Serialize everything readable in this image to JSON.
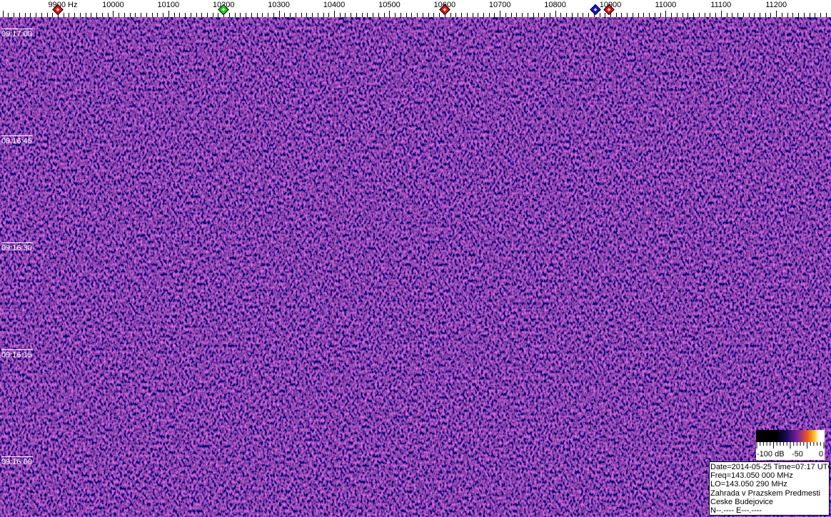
{
  "frequency_scale": {
    "labels": [
      {
        "text": "9900 Hz",
        "hz": 9900
      },
      {
        "text": "10000",
        "hz": 10000
      },
      {
        "text": "10100",
        "hz": 10100
      },
      {
        "text": "10200",
        "hz": 10200
      },
      {
        "text": "10300",
        "hz": 10300
      },
      {
        "text": "10400",
        "hz": 10400
      },
      {
        "text": "10500",
        "hz": 10500
      },
      {
        "text": "10600",
        "hz": 10600
      },
      {
        "text": "10700",
        "hz": 10700
      },
      {
        "text": "10800",
        "hz": 10800
      },
      {
        "text": "10900",
        "hz": 10900
      },
      {
        "text": "11000",
        "hz": 11000
      },
      {
        "text": "11100",
        "hz": 11100
      },
      {
        "text": "11200",
        "hz": 11200
      }
    ],
    "markers": [
      {
        "hz": 9900,
        "color": "#d81818"
      },
      {
        "hz": 10200,
        "color": "#22cc22"
      },
      {
        "hz": 10600,
        "color": "#d81818"
      },
      {
        "hz": 10873,
        "color": "#1818d0"
      },
      {
        "hz": 10898,
        "color": "#d81818"
      }
    ]
  },
  "time_labels": [
    "09:17:00",
    "09:16:45",
    "09:16:30",
    "09:16:15",
    "09:16:00"
  ],
  "colorbar": {
    "labels": [
      "-100 dB",
      "-50",
      "0"
    ]
  },
  "info": {
    "line1": "Date=2014-05-25 Time=07:17 UTC",
    "line2": "Freq=143.050 000 MHz",
    "line3": "LO=143.050 290 MHz",
    "line4": "Zahrada v Prazskem Predmesti",
    "line5": "Ceske Budejovice",
    "line6": "N--.---- E---.----"
  },
  "colors": {
    "waterfall_base": "#2e1470"
  }
}
